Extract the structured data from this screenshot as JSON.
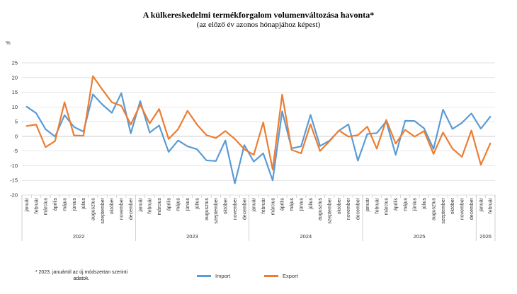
{
  "colors": {
    "import": "#5b9bd5",
    "export": "#ed7d31",
    "grid": "#d9d9d9",
    "axis": "#bfbfbf"
  },
  "footnote": "* 2023. januártól az új módszertan szerinti adatok.",
  "chart_data": {
    "type": "line",
    "title": "A külkereskedelmi termékforgalom volumenváltozása havonta*",
    "subtitle": "(az előző év azonos hónapjához képest)",
    "ylabel": "%",
    "ylim": [
      -20,
      25
    ],
    "yticks": [
      -20,
      -15,
      -10,
      -5,
      0,
      5,
      10,
      15,
      20,
      25
    ],
    "categories": [
      "január",
      "február",
      "március",
      "április",
      "május",
      "június",
      "július",
      "augusztus",
      "szeptember",
      "október",
      "november",
      "december",
      "január",
      "február",
      "március",
      "április",
      "május",
      "június",
      "július",
      "augusztus",
      "szeptember",
      "október",
      "november",
      "december",
      "január",
      "február",
      "március",
      "április",
      "május",
      "június",
      "július",
      "augusztus",
      "szeptember",
      "október",
      "november",
      "december",
      "január",
      "február",
      "március",
      "április",
      "május",
      "június",
      "július",
      "augusztus",
      "szeptember",
      "október",
      "november",
      "december",
      "január",
      "február"
    ],
    "years": [
      {
        "label": "2022",
        "count": 12
      },
      {
        "label": "2023",
        "count": 12
      },
      {
        "label": "2024",
        "count": 12
      },
      {
        "label": "2025",
        "count": 12
      },
      {
        "label": "2026",
        "count": 2
      }
    ],
    "legend": "bottom",
    "series": [
      {
        "name": "Import",
        "key": "import",
        "values": [
          10.1,
          7.9,
          2.4,
          -0.1,
          7.2,
          3.2,
          1.6,
          14.3,
          10.8,
          8.0,
          14.7,
          1.0,
          12.0,
          1.3,
          3.7,
          -5.3,
          -1.4,
          -3.4,
          -4.4,
          -8.2,
          -8.4,
          -1.4,
          -16.0,
          -3.0,
          -8.6,
          -5.8,
          -15.0,
          8.5,
          -4.1,
          -3.4,
          7.3,
          -3.3,
          -1.5,
          1.9,
          4.1,
          -8.3,
          0.8,
          1.1,
          5.1,
          -6.3,
          5.3,
          5.2,
          2.7,
          -4.3,
          9.1,
          2.5,
          4.6,
          7.8,
          2.6,
          6.7
        ]
      },
      {
        "name": "Export",
        "key": "export",
        "values": [
          3.5,
          4.0,
          -3.7,
          -1.6,
          11.6,
          0.3,
          0.2,
          20.5,
          15.9,
          11.6,
          10.4,
          4.0,
          10.8,
          4.4,
          9.3,
          -0.9,
          2.4,
          8.7,
          4.0,
          0.4,
          -0.6,
          1.8,
          -0.9,
          -4.4,
          -6.3,
          4.7,
          -11.3,
          14.2,
          -4.6,
          -5.8,
          4.1,
          -5.0,
          -1.7,
          2.0,
          -0.1,
          0.4,
          3.3,
          -4.2,
          5.6,
          -2.5,
          2.2,
          -0.1,
          1.8,
          -6.0,
          1.3,
          -4.2,
          -7.0,
          2.0,
          -9.7,
          -2.4
        ]
      }
    ]
  }
}
